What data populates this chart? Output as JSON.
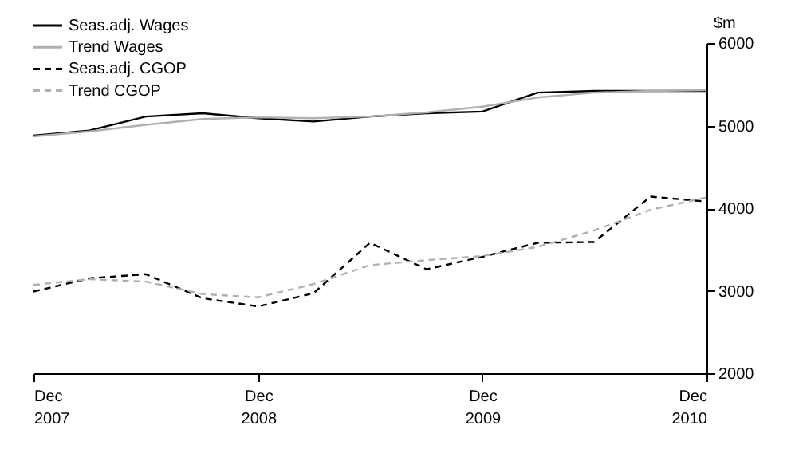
{
  "chart_data": {
    "type": "line",
    "ylabel": "$m",
    "x": [
      "2007-12",
      "2008-03",
      "2008-06",
      "2008-09",
      "2008-12",
      "2009-03",
      "2009-06",
      "2009-09",
      "2009-12",
      "2010-03",
      "2010-06",
      "2010-09",
      "2010-12"
    ],
    "xlim": [
      "2007-12",
      "2010-12"
    ],
    "xticks": [
      {
        "value": "2007-12",
        "label": "Dec 2007"
      },
      {
        "value": "2008-12",
        "label": "Dec 2008"
      },
      {
        "value": "2009-12",
        "label": "Dec 2009"
      },
      {
        "value": "2010-12",
        "label": "Dec 2010"
      }
    ],
    "ylim": [
      2000,
      6000
    ],
    "yticks": [
      2000,
      3000,
      4000,
      5000,
      6000
    ],
    "grid": false,
    "legend": "top left",
    "marker": "none",
    "series": [
      {
        "name": "Seas.adj. Wages",
        "color": "#000000",
        "line_style": "solid",
        "values": [
          4880,
          4940,
          5110,
          5150,
          5090,
          5050,
          5110,
          5150,
          5170,
          5400,
          5420,
          5420,
          5420
        ]
      },
      {
        "name": "Trend Wages",
        "color": "#b0b0b0",
        "line_style": "solid",
        "values": [
          4870,
          4930,
          5010,
          5080,
          5100,
          5090,
          5110,
          5160,
          5230,
          5340,
          5400,
          5420,
          5430
        ]
      },
      {
        "name": "Seas.adj. CGOP",
        "color": "#000000",
        "line_style": "dashed",
        "values": [
          2990,
          3150,
          3200,
          2910,
          2810,
          2970,
          3580,
          3260,
          3410,
          3580,
          3590,
          4140,
          4080
        ]
      },
      {
        "name": "Trend CGOP",
        "color": "#b0b0b0",
        "line_style": "dashed",
        "values": [
          3070,
          3140,
          3110,
          2960,
          2920,
          3080,
          3310,
          3370,
          3420,
          3530,
          3730,
          3980,
          4130
        ]
      }
    ]
  }
}
